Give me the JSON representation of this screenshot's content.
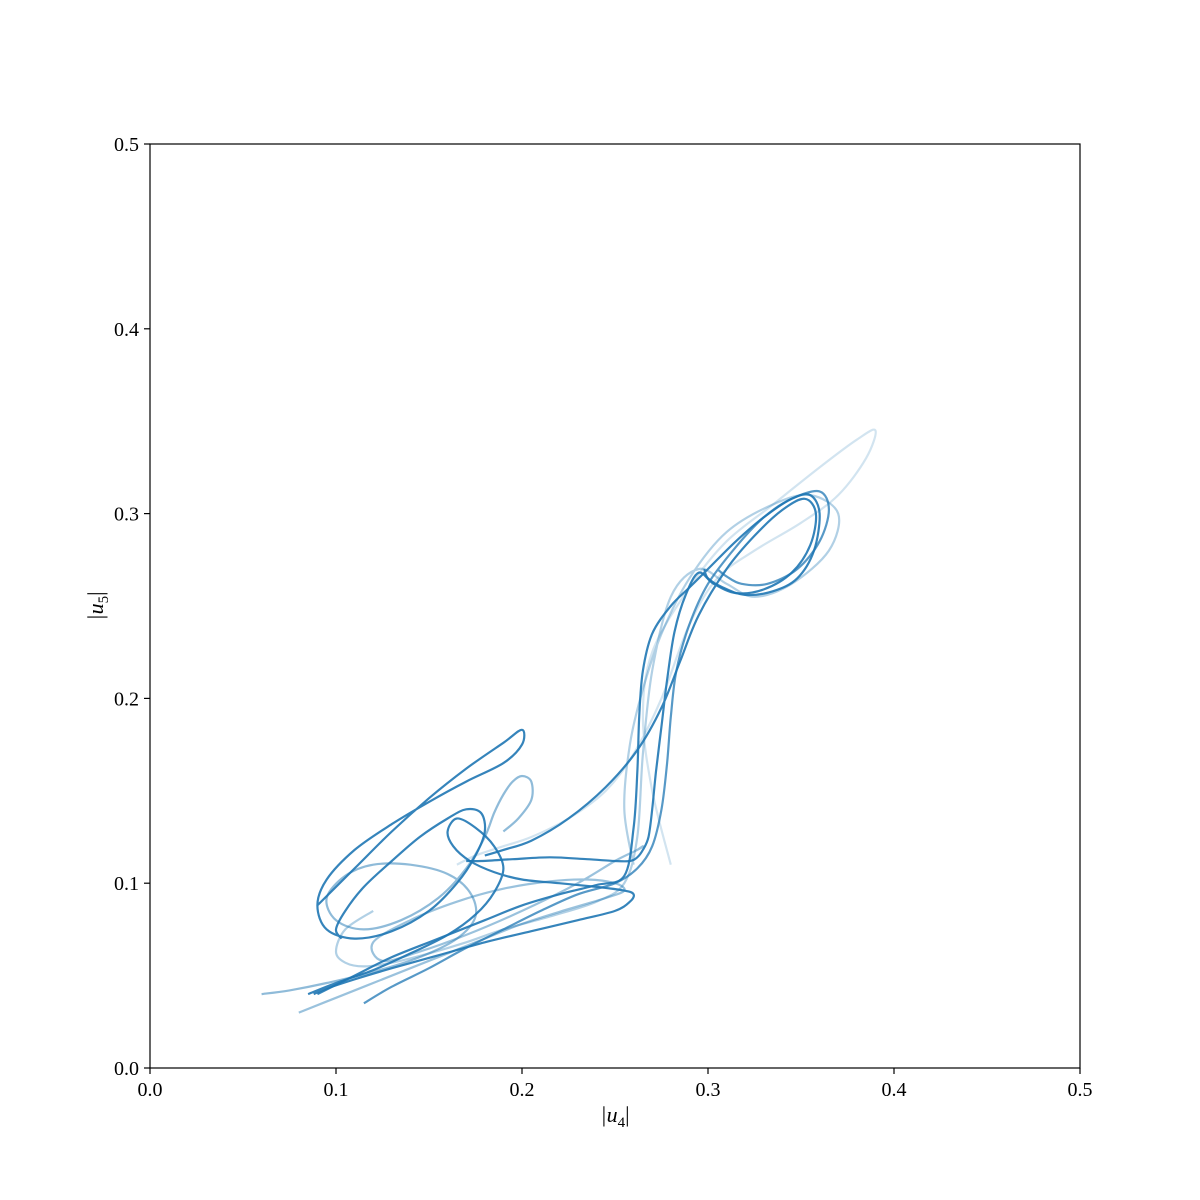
{
  "chart_data": {
    "type": "line",
    "xlabel": "|u",
    "xlabel_sub": "4",
    "xlabel_end": "|",
    "ylabel": "|u",
    "ylabel_sub": "5",
    "ylabel_end": "|",
    "xlim": [
      0.0,
      0.5
    ],
    "ylim": [
      0.0,
      0.5
    ],
    "xticks": [
      "0.0",
      "0.1",
      "0.2",
      "0.3",
      "0.4",
      "0.5"
    ],
    "yticks": [
      "0.0",
      "0.1",
      "0.2",
      "0.3",
      "0.4",
      "0.5"
    ],
    "grid": false,
    "legend": "none",
    "line_color": "#1f77b4",
    "series": [
      {
        "opacity": 0.2,
        "x": [
          0.28,
          0.27,
          0.265,
          0.27,
          0.29,
          0.31,
          0.335,
          0.36,
          0.38,
          0.39,
          0.385,
          0.37,
          0.35,
          0.325,
          0.305,
          0.29,
          0.275,
          0.26,
          0.245,
          0.225,
          0.205,
          0.19,
          0.175,
          0.165
        ],
        "y": [
          0.11,
          0.15,
          0.19,
          0.225,
          0.26,
          0.285,
          0.305,
          0.325,
          0.34,
          0.345,
          0.33,
          0.31,
          0.295,
          0.28,
          0.265,
          0.24,
          0.2,
          0.17,
          0.15,
          0.135,
          0.125,
          0.12,
          0.115,
          0.11
        ]
      },
      {
        "opacity": 0.35,
        "x": [
          0.26,
          0.255,
          0.258,
          0.265,
          0.275,
          0.29,
          0.31,
          0.335,
          0.355,
          0.37,
          0.365,
          0.345,
          0.325,
          0.31,
          0.295,
          0.28,
          0.27,
          0.265,
          0.262,
          0.255,
          0.24,
          0.215,
          0.19,
          0.17,
          0.15,
          0.13,
          0.115,
          0.105,
          0.1,
          0.105,
          0.12
        ],
        "y": [
          0.11,
          0.14,
          0.175,
          0.205,
          0.235,
          0.265,
          0.29,
          0.305,
          0.31,
          0.3,
          0.28,
          0.262,
          0.255,
          0.262,
          0.27,
          0.255,
          0.215,
          0.17,
          0.125,
          0.1,
          0.09,
          0.082,
          0.075,
          0.068,
          0.062,
          0.057,
          0.055,
          0.057,
          0.063,
          0.075,
          0.085
        ]
      },
      {
        "opacity": 0.45,
        "x": [
          0.08,
          0.1,
          0.125,
          0.15,
          0.175,
          0.2,
          0.225,
          0.245,
          0.255,
          0.25,
          0.235,
          0.215,
          0.19,
          0.165,
          0.14,
          0.12,
          0.125,
          0.145,
          0.17,
          0.2,
          0.23,
          0.25,
          0.262,
          0.265,
          0.262
        ],
        "y": [
          0.03,
          0.038,
          0.048,
          0.058,
          0.068,
          0.078,
          0.086,
          0.092,
          0.096,
          0.1,
          0.102,
          0.101,
          0.097,
          0.09,
          0.08,
          0.068,
          0.058,
          0.063,
          0.072,
          0.085,
          0.1,
          0.112,
          0.118,
          0.12,
          0.118
        ]
      },
      {
        "opacity": 0.5,
        "x": [
          0.06,
          0.075,
          0.095,
          0.12,
          0.145,
          0.165,
          0.175,
          0.172,
          0.16,
          0.14,
          0.12,
          0.105,
          0.095,
          0.1,
          0.115,
          0.135,
          0.155,
          0.17,
          0.18,
          0.185,
          0.19,
          0.195,
          0.2,
          0.205,
          0.205,
          0.198,
          0.19
        ],
        "y": [
          0.04,
          0.042,
          0.046,
          0.052,
          0.06,
          0.07,
          0.082,
          0.095,
          0.105,
          0.11,
          0.11,
          0.104,
          0.092,
          0.08,
          0.075,
          0.08,
          0.092,
          0.108,
          0.125,
          0.138,
          0.148,
          0.155,
          0.158,
          0.155,
          0.145,
          0.135,
          0.128
        ]
      },
      {
        "opacity": 0.9,
        "x": [
          0.09,
          0.11,
          0.13,
          0.15,
          0.17,
          0.19,
          0.2,
          0.2,
          0.19,
          0.17,
          0.15,
          0.13,
          0.11,
          0.095,
          0.09,
          0.095,
          0.11,
          0.13,
          0.15,
          0.165,
          0.175,
          0.18,
          0.178,
          0.17,
          0.16,
          0.145,
          0.13,
          0.115,
          0.105,
          0.1,
          0.103
        ],
        "y": [
          0.088,
          0.108,
          0.128,
          0.146,
          0.162,
          0.176,
          0.183,
          0.175,
          0.165,
          0.155,
          0.144,
          0.132,
          0.118,
          0.102,
          0.088,
          0.075,
          0.07,
          0.074,
          0.085,
          0.1,
          0.115,
          0.128,
          0.138,
          0.14,
          0.135,
          0.125,
          0.112,
          0.098,
          0.085,
          0.075,
          0.07
        ]
      },
      {
        "opacity": 0.9,
        "x": [
          0.09,
          0.11,
          0.13,
          0.155,
          0.18,
          0.2,
          0.22,
          0.24,
          0.255,
          0.26,
          0.262,
          0.263,
          0.265,
          0.27,
          0.28,
          0.29,
          0.3,
          0.315,
          0.33,
          0.345,
          0.355,
          0.36,
          0.357,
          0.348,
          0.335,
          0.32,
          0.308,
          0.3,
          0.298
        ],
        "y": [
          0.04,
          0.05,
          0.06,
          0.07,
          0.08,
          0.088,
          0.094,
          0.099,
          0.104,
          0.13,
          0.16,
          0.19,
          0.215,
          0.235,
          0.25,
          0.26,
          0.27,
          0.285,
          0.298,
          0.308,
          0.31,
          0.3,
          0.28,
          0.265,
          0.258,
          0.256,
          0.26,
          0.265,
          0.27
        ]
      },
      {
        "opacity": 0.9,
        "x": [
          0.18,
          0.19,
          0.205,
          0.225,
          0.245,
          0.262,
          0.275,
          0.285,
          0.295,
          0.31,
          0.325,
          0.34,
          0.352,
          0.358,
          0.355,
          0.345,
          0.33,
          0.315,
          0.303,
          0.295,
          0.288,
          0.282,
          0.278,
          0.275,
          0.272,
          0.27,
          0.268,
          0.265,
          0.262,
          0.258,
          0.25,
          0.235,
          0.215,
          0.195,
          0.178,
          0.17
        ],
        "y": [
          0.115,
          0.118,
          0.123,
          0.135,
          0.152,
          0.172,
          0.195,
          0.22,
          0.245,
          0.27,
          0.288,
          0.302,
          0.308,
          0.3,
          0.283,
          0.268,
          0.259,
          0.257,
          0.262,
          0.268,
          0.256,
          0.236,
          0.21,
          0.185,
          0.16,
          0.14,
          0.125,
          0.118,
          0.114,
          0.112,
          0.112,
          0.113,
          0.114,
          0.113,
          0.112,
          0.112
        ]
      },
      {
        "opacity": 0.9,
        "x": [
          0.085,
          0.1,
          0.12,
          0.14,
          0.16,
          0.175,
          0.185,
          0.19,
          0.185,
          0.175,
          0.165,
          0.16,
          0.163,
          0.172,
          0.185,
          0.2,
          0.22,
          0.24,
          0.255,
          0.26,
          0.258,
          0.25,
          0.23,
          0.205,
          0.18,
          0.155,
          0.13,
          0.11,
          0.095,
          0.088
        ],
        "y": [
          0.04,
          0.046,
          0.053,
          0.062,
          0.072,
          0.083,
          0.095,
          0.108,
          0.12,
          0.13,
          0.135,
          0.128,
          0.12,
          0.112,
          0.106,
          0.102,
          0.1,
          0.098,
          0.096,
          0.094,
          0.09,
          0.085,
          0.08,
          0.074,
          0.068,
          0.061,
          0.054,
          0.048,
          0.043,
          0.04
        ]
      },
      {
        "opacity": 0.75,
        "x": [
          0.115,
          0.13,
          0.15,
          0.17,
          0.19,
          0.21,
          0.23,
          0.25,
          0.262,
          0.27,
          0.275,
          0.278,
          0.28,
          0.283,
          0.29,
          0.3,
          0.315,
          0.33,
          0.345,
          0.36,
          0.365,
          0.36,
          0.348,
          0.332,
          0.318,
          0.31,
          0.305
        ],
        "y": [
          0.035,
          0.044,
          0.054,
          0.065,
          0.075,
          0.085,
          0.094,
          0.1,
          0.108,
          0.12,
          0.14,
          0.165,
          0.19,
          0.215,
          0.24,
          0.262,
          0.282,
          0.298,
          0.308,
          0.312,
          0.302,
          0.285,
          0.27,
          0.262,
          0.262,
          0.266,
          0.27
        ]
      }
    ]
  }
}
